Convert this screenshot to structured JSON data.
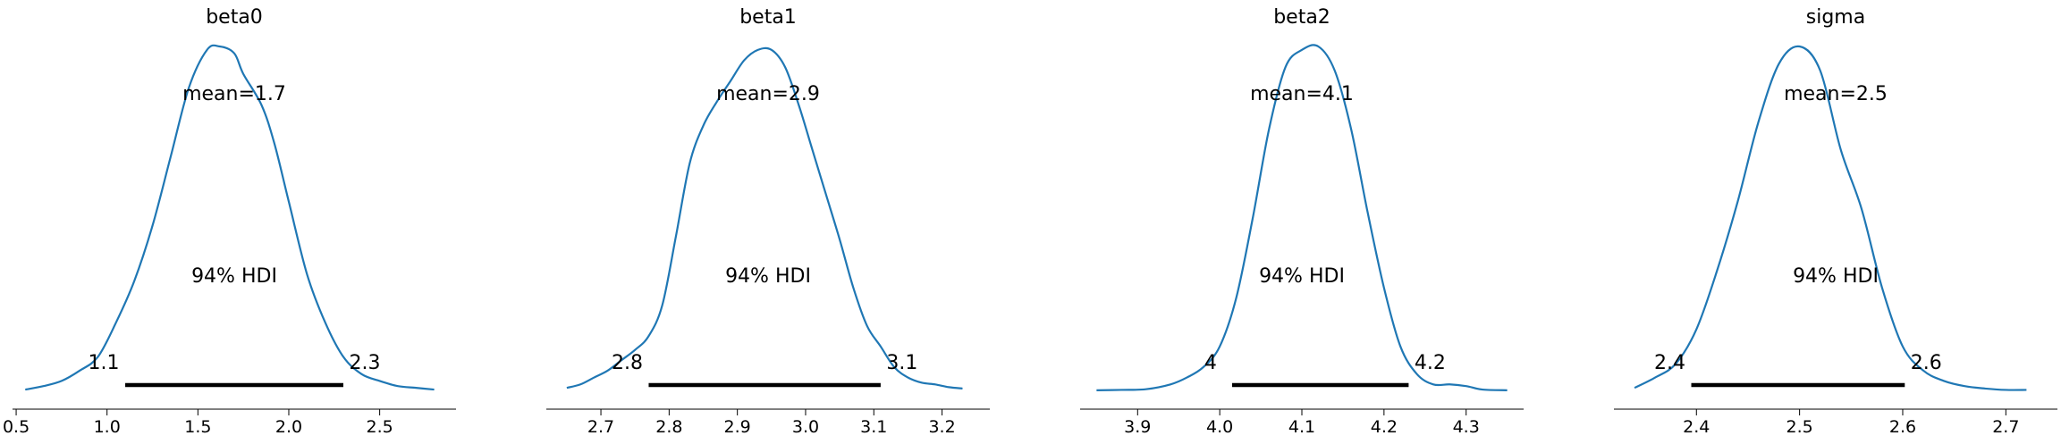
{
  "chart_data": [
    {
      "type": "line",
      "title": "beta0",
      "xlim": [
        0.48,
        2.92
      ],
      "ticks": [
        0.5,
        1.0,
        1.5,
        2.0,
        2.5
      ],
      "tick_labels": [
        "0.5",
        "1.0",
        "1.5",
        "2.0",
        "2.5"
      ],
      "mean_label": "mean=1.7",
      "hdi_label": "94% HDI",
      "hdi": [
        1.1,
        2.3
      ],
      "hdi_labels": [
        "1.1",
        "2.3"
      ],
      "density": {
        "x": [
          0.55,
          0.65,
          0.75,
          0.85,
          0.95,
          1.05,
          1.15,
          1.25,
          1.35,
          1.45,
          1.55,
          1.62,
          1.7,
          1.75,
          1.85,
          1.92,
          2.0,
          2.1,
          2.2,
          2.3,
          2.4,
          2.5,
          2.6,
          2.7,
          2.8
        ],
        "y": [
          0.005,
          0.015,
          0.03,
          0.06,
          0.1,
          0.2,
          0.32,
          0.48,
          0.68,
          0.88,
          0.99,
          1.0,
          0.98,
          0.92,
          0.83,
          0.72,
          0.55,
          0.34,
          0.2,
          0.1,
          0.05,
          0.03,
          0.015,
          0.01,
          0.005
        ]
      }
    },
    {
      "type": "line",
      "title": "beta1",
      "xlim": [
        2.62,
        3.27
      ],
      "ticks": [
        2.7,
        2.8,
        2.9,
        3.0,
        3.1,
        3.2
      ],
      "tick_labels": [
        "2.7",
        "2.8",
        "2.9",
        "3.0",
        "3.1",
        "3.2"
      ],
      "mean_label": "mean=2.9",
      "hdi_label": "94% HDI",
      "hdi": [
        2.77,
        3.11
      ],
      "hdi_labels": [
        "2.8",
        "3.1"
      ],
      "density": {
        "x": [
          2.65,
          2.67,
          2.69,
          2.71,
          2.73,
          2.75,
          2.77,
          2.79,
          2.81,
          2.83,
          2.85,
          2.87,
          2.89,
          2.91,
          2.93,
          2.95,
          2.97,
          2.99,
          3.01,
          3.03,
          3.05,
          3.07,
          3.09,
          3.11,
          3.13,
          3.15,
          3.17,
          3.19,
          3.21,
          3.23
        ],
        "y": [
          0.01,
          0.02,
          0.04,
          0.06,
          0.09,
          0.12,
          0.16,
          0.25,
          0.45,
          0.66,
          0.77,
          0.84,
          0.9,
          0.96,
          0.99,
          0.99,
          0.94,
          0.83,
          0.7,
          0.57,
          0.44,
          0.3,
          0.19,
          0.13,
          0.07,
          0.04,
          0.025,
          0.02,
          0.012,
          0.008
        ]
      }
    },
    {
      "type": "line",
      "title": "beta2",
      "xlim": [
        3.83,
        4.37
      ],
      "ticks": [
        3.9,
        4.0,
        4.1,
        4.2,
        4.3
      ],
      "tick_labels": [
        "3.9",
        "4.0",
        "4.1",
        "4.2",
        "4.3"
      ],
      "mean_label": "mean=4.1",
      "hdi_label": "94% HDI",
      "hdi": [
        4.015,
        4.23
      ],
      "hdi_labels": [
        "4",
        "4.2"
      ],
      "density": {
        "x": [
          3.85,
          3.88,
          3.91,
          3.94,
          3.96,
          3.98,
          4.0,
          4.02,
          4.04,
          4.06,
          4.08,
          4.1,
          4.12,
          4.14,
          4.16,
          4.18,
          4.2,
          4.22,
          4.24,
          4.26,
          4.28,
          4.3,
          4.32,
          4.35
        ],
        "y": [
          0.003,
          0.004,
          0.006,
          0.02,
          0.04,
          0.07,
          0.13,
          0.27,
          0.5,
          0.76,
          0.94,
          0.99,
          1.0,
          0.93,
          0.76,
          0.52,
          0.3,
          0.13,
          0.05,
          0.02,
          0.02,
          0.015,
          0.005,
          0.003
        ]
      }
    },
    {
      "type": "line",
      "title": "sigma",
      "xlim": [
        2.32,
        2.75
      ],
      "ticks": [
        2.4,
        2.5,
        2.6,
        2.7
      ],
      "tick_labels": [
        "2.4",
        "2.5",
        "2.6",
        "2.7"
      ],
      "mean_label": "mean=2.5",
      "hdi_label": "94% HDI",
      "hdi": [
        2.395,
        2.602
      ],
      "hdi_labels": [
        "2.4",
        "2.6"
      ],
      "density": {
        "x": [
          2.34,
          2.36,
          2.38,
          2.4,
          2.42,
          2.44,
          2.46,
          2.48,
          2.5,
          2.52,
          2.54,
          2.56,
          2.58,
          2.6,
          2.62,
          2.64,
          2.66,
          2.68,
          2.7,
          2.72
        ],
        "y": [
          0.01,
          0.04,
          0.08,
          0.18,
          0.35,
          0.55,
          0.78,
          0.95,
          1.0,
          0.93,
          0.7,
          0.53,
          0.3,
          0.13,
          0.06,
          0.03,
          0.015,
          0.008,
          0.004,
          0.004
        ]
      }
    }
  ],
  "colors": {
    "kde": "#1f77b4",
    "hdi_bar": "#000000",
    "axis": "#000000",
    "text": "#000000"
  }
}
